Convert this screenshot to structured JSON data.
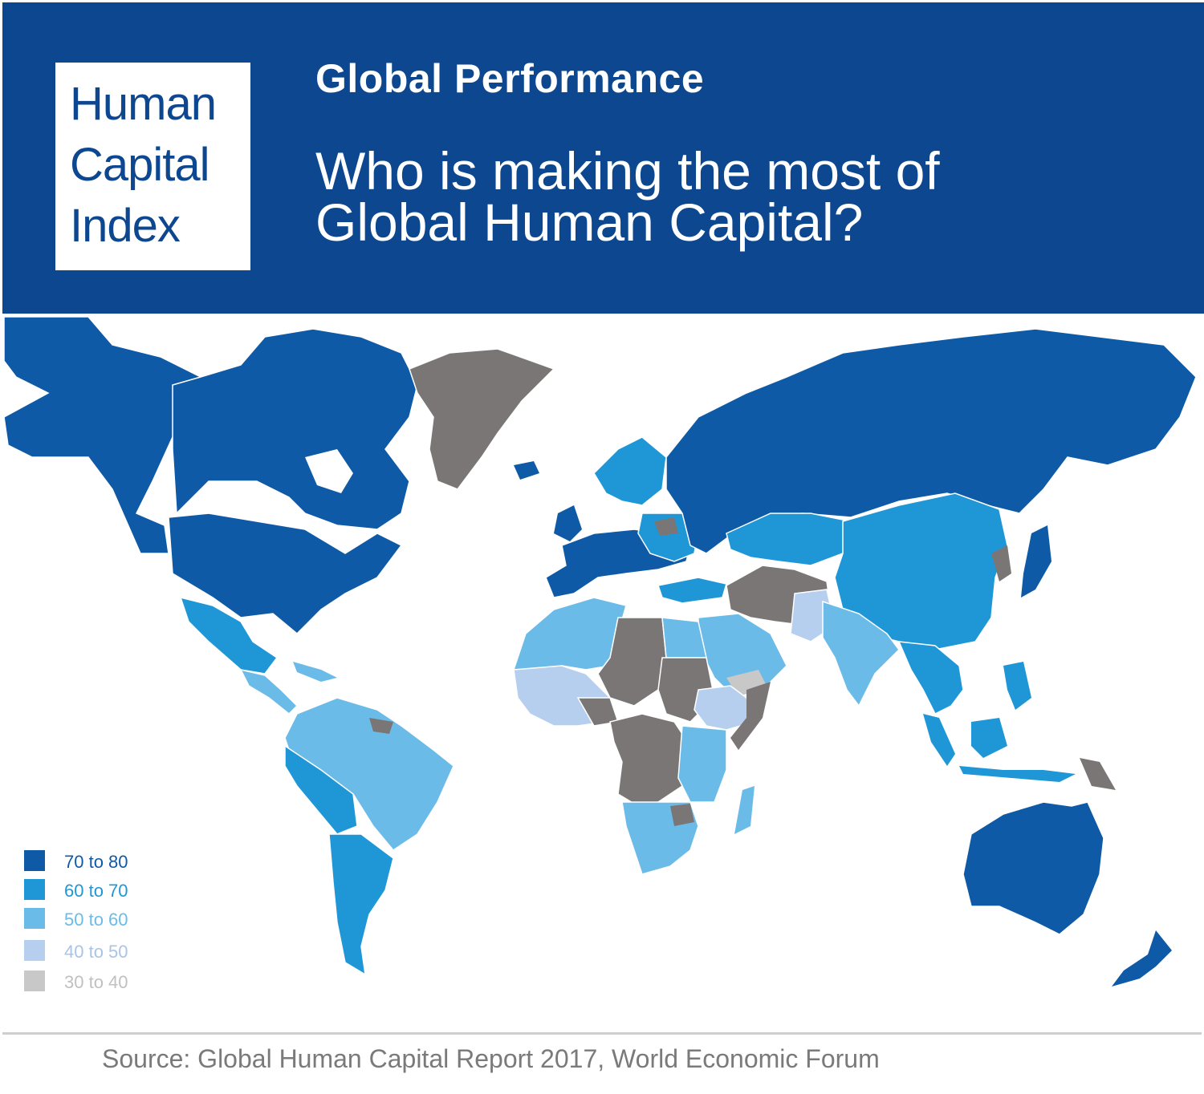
{
  "header": {
    "logo_lines": [
      "Human",
      "Capital",
      "Index"
    ],
    "kicker": "Global Performance",
    "headline_lines": [
      "Who is making the most of",
      "Global Human Capital?"
    ]
  },
  "legend": [
    {
      "label": "70 to 80",
      "color": "#0f5aa6",
      "text_color": "#0f5aa6"
    },
    {
      "label": "60 to 70",
      "color": "#1f97d6",
      "text_color": "#1f97d6"
    },
    {
      "label": "50 to 60",
      "color": "#6bbbe8",
      "text_color": "#6bbbe8"
    },
    {
      "label": "40 to 50",
      "color": "#b7cfee",
      "text_color": "#a9c4e6"
    },
    {
      "label": "30 to 40",
      "color": "#c8c8c8",
      "text_color": "#c0c0c0"
    }
  ],
  "colors": {
    "header_bg": "#0c4790",
    "no_data": "#7a7676"
  },
  "source": "Source: Global Human Capital Report 2017, World Economic Forum"
}
